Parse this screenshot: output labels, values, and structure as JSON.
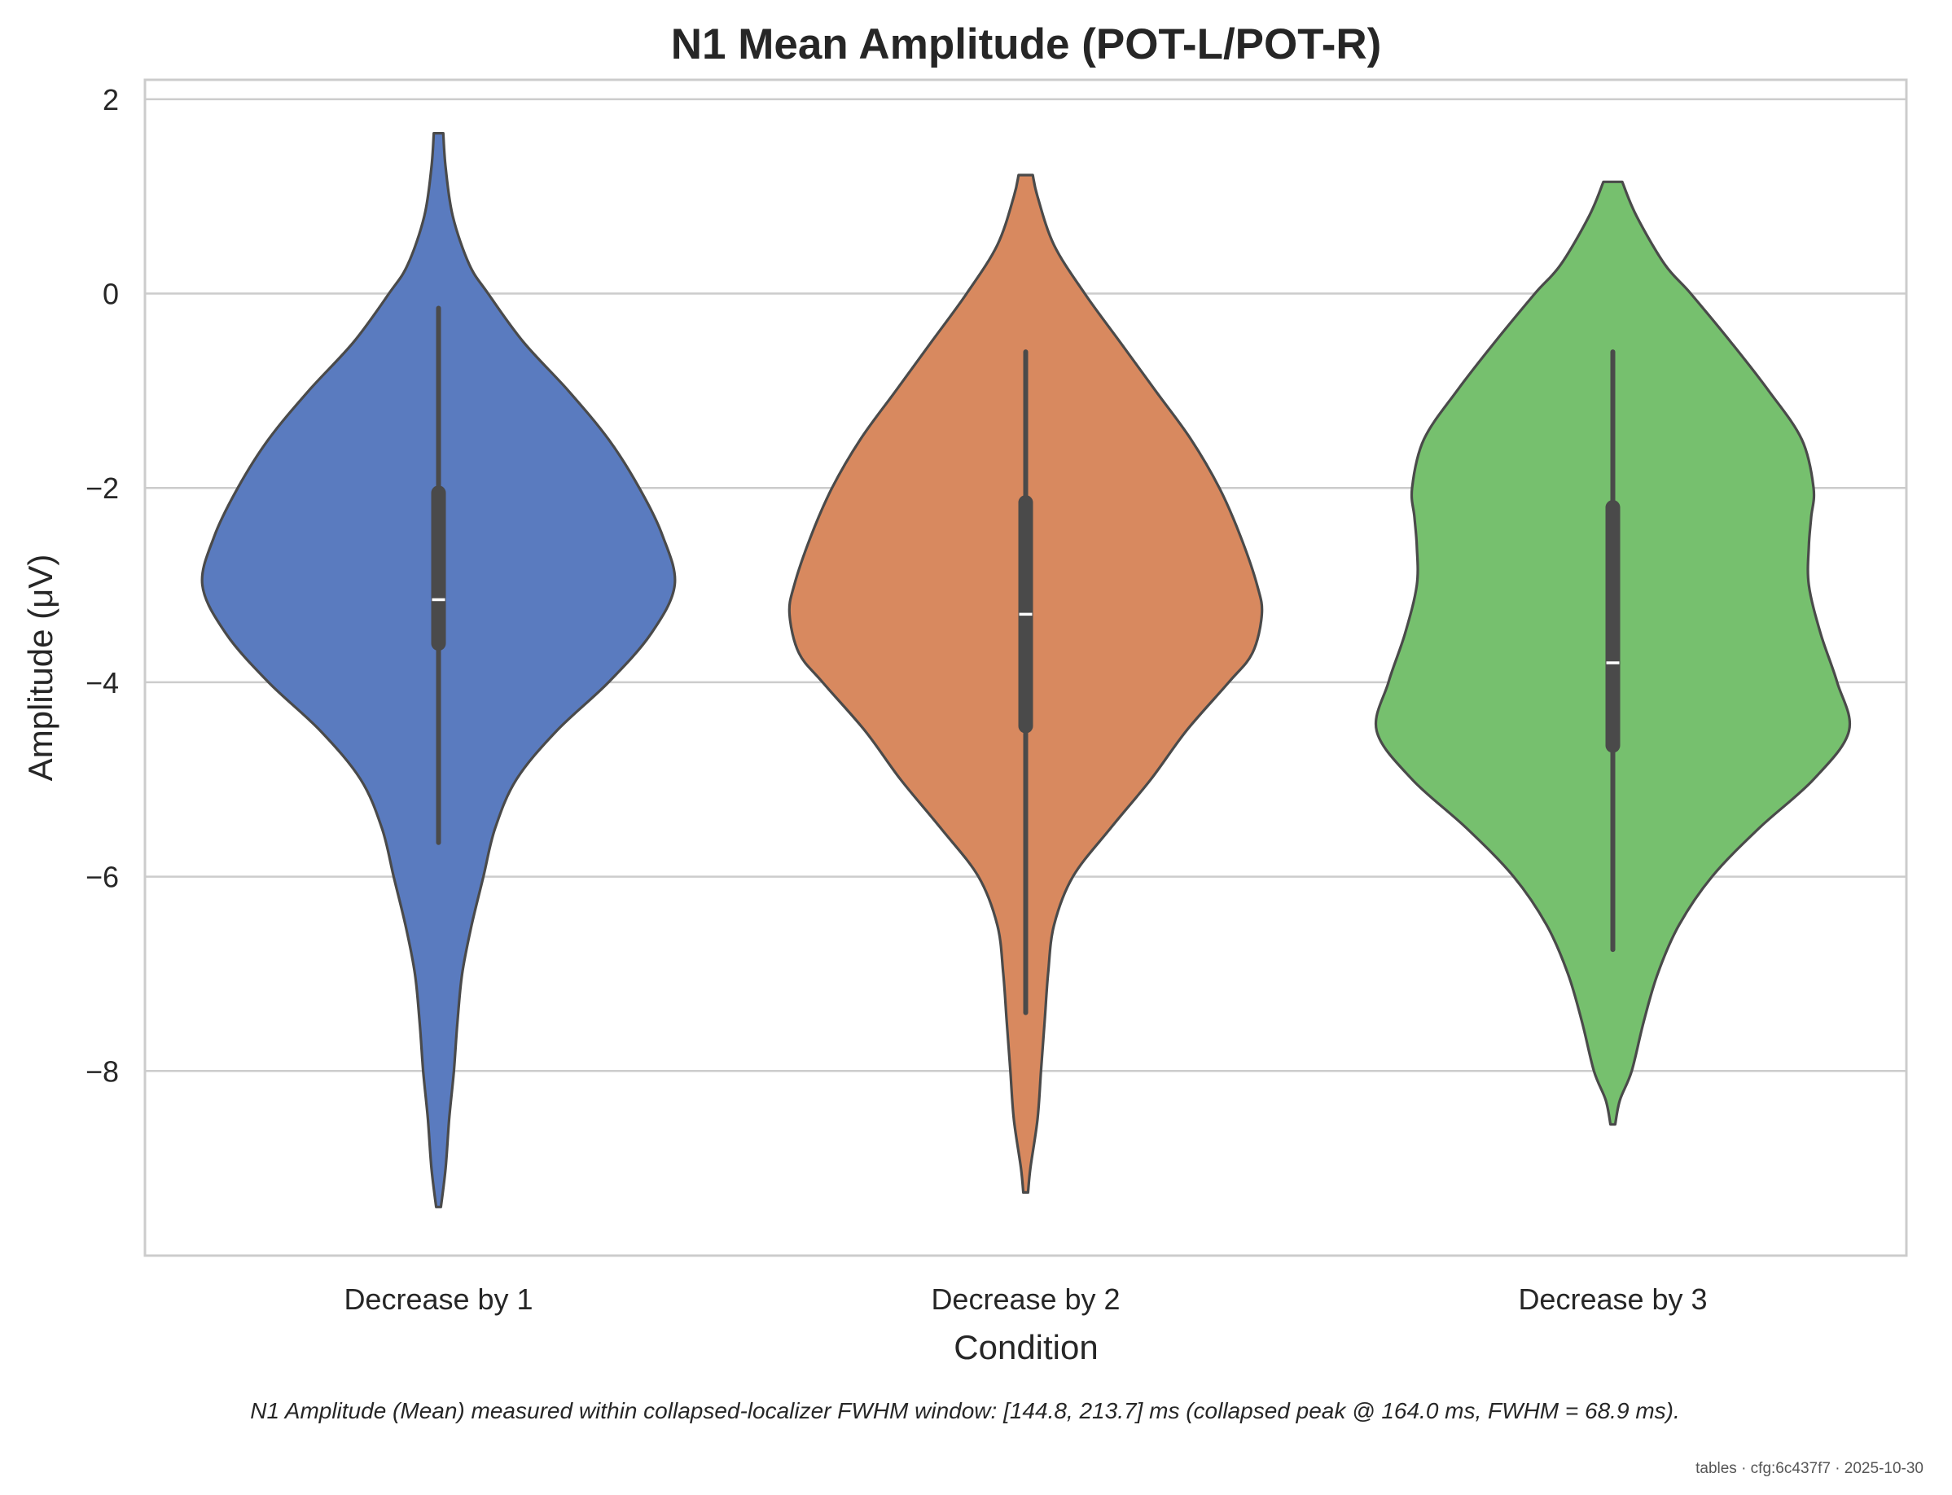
{
  "chart_data": {
    "type": "violin",
    "title": "N1 Mean Amplitude (POT-L/POT-R)",
    "xlabel": "Condition",
    "ylabel": "Amplitude (μV)",
    "ylim": [
      -9.9,
      2.2
    ],
    "yticks": [
      2,
      0,
      -2,
      -4,
      -6,
      -8
    ],
    "ytick_labels": [
      "2",
      "0",
      "−2",
      "−4",
      "−6",
      "−8"
    ],
    "grid": "horizontal",
    "categories": [
      "Decrease by 1",
      "Decrease by 2",
      "Decrease by 3"
    ],
    "series": [
      {
        "category": "Decrease by 1",
        "color": "#5a7bbf",
        "min": -9.4,
        "max": 1.65,
        "whisker_low": -5.65,
        "whisker_high": -0.15,
        "q1": -3.6,
        "median": -3.15,
        "q3": -2.05,
        "density": [
          [
            1.65,
            0.02
          ],
          [
            1.3,
            0.03
          ],
          [
            0.8,
            0.06
          ],
          [
            0.3,
            0.13
          ],
          [
            0,
            0.21
          ],
          [
            -0.5,
            0.36
          ],
          [
            -1,
            0.55
          ],
          [
            -1.5,
            0.72
          ],
          [
            -2,
            0.85
          ],
          [
            -2.5,
            0.95
          ],
          [
            -3,
            1.0
          ],
          [
            -3.5,
            0.9
          ],
          [
            -4,
            0.72
          ],
          [
            -4.5,
            0.5
          ],
          [
            -5,
            0.33
          ],
          [
            -5.5,
            0.24
          ],
          [
            -6,
            0.19
          ],
          [
            -6.5,
            0.14
          ],
          [
            -7,
            0.1
          ],
          [
            -7.5,
            0.08
          ],
          [
            -8,
            0.065
          ],
          [
            -8.5,
            0.045
          ],
          [
            -9,
            0.03
          ],
          [
            -9.4,
            0.01
          ]
        ]
      },
      {
        "category": "Decrease by 2",
        "color": "#d8895f",
        "min": -9.25,
        "max": 1.22,
        "whisker_low": -7.4,
        "whisker_high": -0.6,
        "q1": -4.45,
        "median": -3.3,
        "q3": -2.15,
        "density": [
          [
            1.22,
            0.03
          ],
          [
            1.0,
            0.05
          ],
          [
            0.5,
            0.12
          ],
          [
            0,
            0.25
          ],
          [
            -0.5,
            0.4
          ],
          [
            -1,
            0.55
          ],
          [
            -1.5,
            0.7
          ],
          [
            -2,
            0.82
          ],
          [
            -2.5,
            0.91
          ],
          [
            -3,
            0.98
          ],
          [
            -3.3,
            1.0
          ],
          [
            -3.7,
            0.96
          ],
          [
            -4,
            0.86
          ],
          [
            -4.5,
            0.68
          ],
          [
            -5,
            0.53
          ],
          [
            -5.5,
            0.36
          ],
          [
            -6,
            0.2
          ],
          [
            -6.5,
            0.12
          ],
          [
            -7,
            0.095
          ],
          [
            -7.5,
            0.08
          ],
          [
            -8,
            0.065
          ],
          [
            -8.5,
            0.05
          ],
          [
            -9,
            0.02
          ],
          [
            -9.25,
            0.01
          ]
        ]
      },
      {
        "category": "Decrease by 3",
        "color": "#76c06e",
        "min": -8.55,
        "max": 1.15,
        "whisker_low": -6.75,
        "whisker_high": -0.6,
        "q1": -4.65,
        "median": -3.8,
        "q3": -2.2,
        "density": [
          [
            1.15,
            0.04
          ],
          [
            0.8,
            0.1
          ],
          [
            0.3,
            0.22
          ],
          [
            0,
            0.33
          ],
          [
            -0.5,
            0.5
          ],
          [
            -1,
            0.66
          ],
          [
            -1.5,
            0.8
          ],
          [
            -2,
            0.85
          ],
          [
            -2.3,
            0.84
          ],
          [
            -2.6,
            0.83
          ],
          [
            -3,
            0.83
          ],
          [
            -3.5,
            0.88
          ],
          [
            -4,
            0.95
          ],
          [
            -4.5,
            1.0
          ],
          [
            -5,
            0.85
          ],
          [
            -5.5,
            0.62
          ],
          [
            -6,
            0.42
          ],
          [
            -6.5,
            0.28
          ],
          [
            -7,
            0.19
          ],
          [
            -7.5,
            0.13
          ],
          [
            -8,
            0.08
          ],
          [
            -8.3,
            0.03
          ],
          [
            -8.55,
            0.01
          ]
        ]
      }
    ],
    "caption": "N1 Amplitude (Mean) measured within collapsed-localizer FWHM window: [144.8, 213.7] ms (collapsed peak @ 164.0 ms, FWHM = 68.9 ms).",
    "footer": "tables · cfg:6c437f7 · 2025-10-30"
  }
}
